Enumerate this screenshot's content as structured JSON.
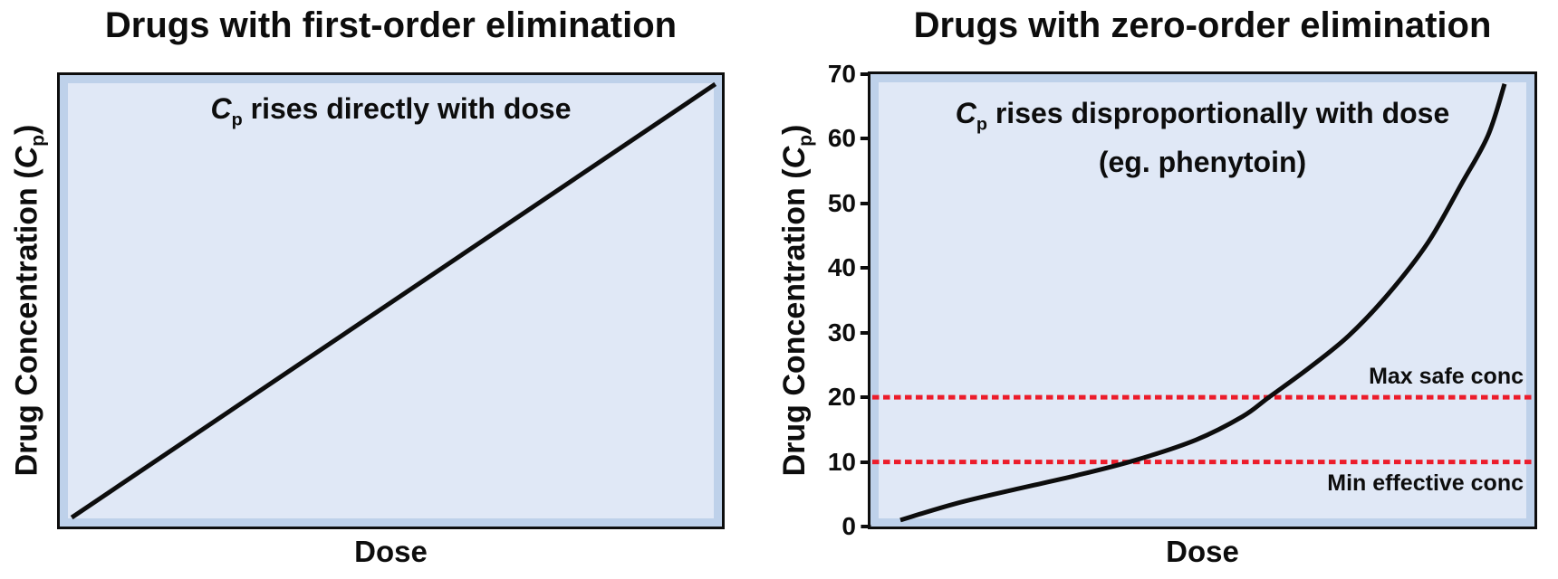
{
  "colors": {
    "background": "#ffffff",
    "text": "#0d0d0d",
    "axis": "#0d0d0d",
    "series_line": "#0d0d0d",
    "plot_bg_edge": "#bed1ea",
    "plot_bg_inner": "#e0e8f6",
    "ref_line": "#ec1c2b"
  },
  "chart_data": [
    {
      "type": "line",
      "title": "Drugs with first-order elimination",
      "xlabel": "Dose",
      "ylabel": {
        "prefix": "Drug Concentration (",
        "italic": "C",
        "sub": "p",
        "suffix": ")"
      },
      "annotation": {
        "italic": "C",
        "sub": "p",
        "text": " rises directly with dose"
      },
      "xlim": [
        0,
        10
      ],
      "ylim": [
        0,
        10
      ],
      "grid": false,
      "legend": false,
      "yticks": [],
      "ytick_labels": [],
      "series": [
        {
          "name": "Cp vs dose (directly proportional)",
          "points": [
            [
              0.18,
              0.2
            ],
            [
              9.9,
              9.8
            ]
          ]
        }
      ],
      "ref_lines": []
    },
    {
      "type": "line",
      "title": "Drugs with zero-order elimination",
      "xlabel": "Dose",
      "ylabel": {
        "prefix": "Drug Concentration (",
        "italic": "C",
        "sub": "p",
        "suffix": ")"
      },
      "annotation": {
        "italic": "C",
        "sub": "p",
        "text": " rises disproportionally with dose"
      },
      "annotation_line2": "(eg. phenytoin)",
      "xlim": [
        0,
        10
      ],
      "ylim": [
        0,
        70
      ],
      "grid": false,
      "legend": false,
      "yticks": [
        0,
        10,
        20,
        30,
        40,
        50,
        60,
        70
      ],
      "ytick_labels": [
        "0",
        "10",
        "20",
        "30",
        "40",
        "50",
        "60",
        "70"
      ],
      "series": [
        {
          "name": "Cp vs dose (zero-order, eg. phenytoin)",
          "points": [
            [
              0.45,
              1
            ],
            [
              1.3,
              3.6
            ],
            [
              2.2,
              5.8
            ],
            [
              3.1,
              7.9
            ],
            [
              4.0,
              10.3
            ],
            [
              4.9,
              13.4
            ],
            [
              5.6,
              17
            ],
            [
              6.0,
              20
            ],
            [
              6.6,
              24.5
            ],
            [
              7.2,
              29.5
            ],
            [
              7.8,
              36
            ],
            [
              8.4,
              44
            ],
            [
              8.9,
              53
            ],
            [
              9.3,
              60.5
            ],
            [
              9.55,
              68.5
            ]
          ]
        }
      ],
      "ref_lines": [
        {
          "value": 20,
          "label": "Max safe conc",
          "label_position": "above"
        },
        {
          "value": 10,
          "label": "Min effective conc",
          "label_position": "below"
        }
      ]
    }
  ]
}
